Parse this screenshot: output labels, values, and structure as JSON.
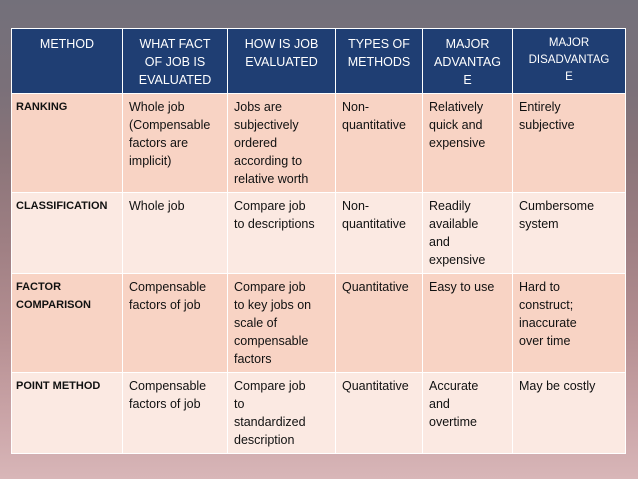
{
  "table": {
    "columns": [
      "METHOD",
      "WHAT FACT\nOF JOB IS\nEVALUATED",
      "HOW IS JOB\nEVALUATED",
      "TYPES OF\nMETHODS",
      "MAJOR\nADVANTAG\nE",
      "MAJOR\nDISADVANTAG\nE"
    ],
    "rows": [
      {
        "method": "RANKING",
        "what": "Whole job\n(Compensable\nfactors are\nimplicit)",
        "how": "Jobs are\nsubjectively\nordered\naccording to\nrelative worth",
        "types": "Non-\nquantitative",
        "advantage": "Relatively\nquick and\nexpensive",
        "disadvantage": "Entirely\nsubjective"
      },
      {
        "method": "CLASSIFICATION",
        "what": "Whole job",
        "how": "Compare job\nto descriptions",
        "types": "Non-\nquantitative",
        "advantage": "Readily\navailable\nand\nexpensive",
        "disadvantage": "Cumbersome\nsystem"
      },
      {
        "method": "FACTOR\nCOMPARISON",
        "what": "Compensable\nfactors of job",
        "how": "Compare job\nto key jobs on\nscale of\ncompensable\nfactors",
        "types": "Quantitative",
        "advantage": "Easy to use",
        "disadvantage": "Hard to\nconstruct;\ninaccurate\nover time"
      },
      {
        "method": "POINT METHOD",
        "what": "Compensable\nfactors of job",
        "how": "Compare job\nto\nstandardized\ndescription",
        "types": "Quantitative",
        "advantage": "Accurate\nand\novertime",
        "disadvantage": "May be costly"
      }
    ]
  },
  "colors": {
    "header_bg": "#1f3e73",
    "row_odd_bg": "#f8d3c4",
    "row_even_bg": "#fbe9e2",
    "border": "#ffffff"
  }
}
